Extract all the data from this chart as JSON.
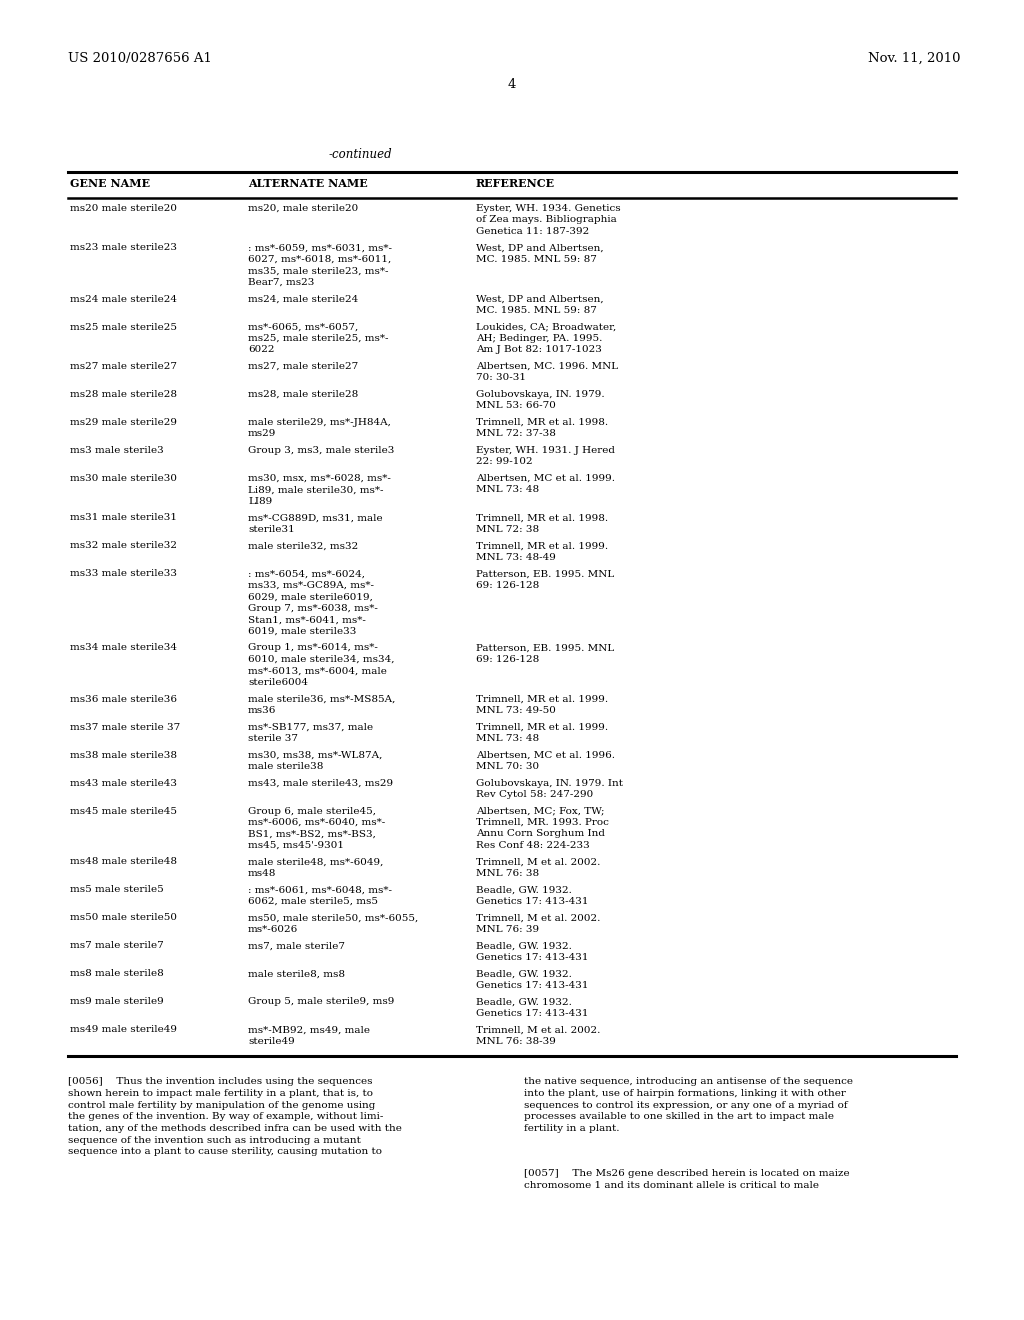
{
  "page_number": "4",
  "patent_number": "US 2010/0287656 A1",
  "date": "Nov. 11, 2010",
  "continued_label": "-continued",
  "table_headers": [
    "GENE NAME",
    "ALTERNATE NAME",
    "REFERENCE"
  ],
  "table_rows": [
    [
      "ms20 male sterile20",
      "ms20, male sterile20",
      "Eyster, WH. 1934. Genetics\nof Zea mays. Bibliographia\nGenetica 11: 187-392"
    ],
    [
      "ms23 male sterile23",
      ": ms*-6059, ms*-6031, ms*-\n6027, ms*-6018, ms*-6011,\nms35, male sterile23, ms*-\nBear7, ms23",
      "West, DP and Albertsen,\nMC. 1985. MNL 59: 87"
    ],
    [
      "ms24 male sterile24",
      "ms24, male sterile24",
      "West, DP and Albertsen,\nMC. 1985. MNL 59: 87"
    ],
    [
      "ms25 male sterile25",
      "ms*-6065, ms*-6057,\nms25, male sterile25, ms*-\n6022",
      "Loukides, CA; Broadwater,\nAH; Bedinger, PA. 1995.\nAm J Bot 82: 1017-1023"
    ],
    [
      "ms27 male sterile27",
      "ms27, male sterile27",
      "Albertsen, MC. 1996. MNL\n70: 30-31"
    ],
    [
      "ms28 male sterile28",
      "ms28, male sterile28",
      "Golubovskaya, IN. 1979.\nMNL 53: 66-70"
    ],
    [
      "ms29 male sterile29",
      "male sterile29, ms*-JH84A,\nms29",
      "Trimnell, MR et al. 1998.\nMNL 72: 37-38"
    ],
    [
      "ms3 male sterile3",
      "Group 3, ms3, male sterile3",
      "Eyster, WH. 1931. J Hered\n22: 99-102"
    ],
    [
      "ms30 male sterile30",
      "ms30, msx, ms*-6028, ms*-\nLi89, male sterile30, ms*-\nLI89",
      "Albertsen, MC et al. 1999.\nMNL 73: 48"
    ],
    [
      "ms31 male sterile31",
      "ms*-CG889D, ms31, male\nsterile31",
      "Trimnell, MR et al. 1998.\nMNL 72: 38"
    ],
    [
      "ms32 male sterile32",
      "male sterile32, ms32",
      "Trimnell, MR et al. 1999.\nMNL 73: 48-49"
    ],
    [
      "ms33 male sterile33",
      ": ms*-6054, ms*-6024,\nms33, ms*-GC89A, ms*-\n6029, male sterile6019,\nGroup 7, ms*-6038, ms*-\nStan1, ms*-6041, ms*-\n6019, male sterile33",
      "Patterson, EB. 1995. MNL\n69: 126-128"
    ],
    [
      "ms34 male sterile34",
      "Group 1, ms*-6014, ms*-\n6010, male sterile34, ms34,\nms*-6013, ms*-6004, male\nsterile6004",
      "Patterson, EB. 1995. MNL\n69: 126-128"
    ],
    [
      "ms36 male sterile36",
      "male sterile36, ms*-MS85A,\nms36",
      "Trimnell, MR et al. 1999.\nMNL 73: 49-50"
    ],
    [
      "ms37 male sterile 37",
      "ms*-SB177, ms37, male\nsterile 37",
      "Trimnell, MR et al. 1999.\nMNL 73: 48"
    ],
    [
      "ms38 male sterile38",
      "ms30, ms38, ms*-WL87A,\nmale sterile38",
      "Albertsen, MC et al. 1996.\nMNL 70: 30"
    ],
    [
      "ms43 male sterile43",
      "ms43, male sterile43, ms29",
      "Golubovskaya, IN. 1979. Int\nRev Cytol 58: 247-290"
    ],
    [
      "ms45 male sterile45",
      "Group 6, male sterile45,\nms*-6006, ms*-6040, ms*-\nBS1, ms*-BS2, ms*-BS3,\nms45, ms45'-9301",
      "Albertsen, MC; Fox, TW;\nTrimnell, MR. 1993. Proc\nAnnu Corn Sorghum Ind\nRes Conf 48: 224-233"
    ],
    [
      "ms48 male sterile48",
      "male sterile48, ms*-6049,\nms48",
      "Trimnell, M et al. 2002.\nMNL 76: 38"
    ],
    [
      "ms5 male sterile5",
      ": ms*-6061, ms*-6048, ms*-\n6062, male sterile5, ms5",
      "Beadle, GW. 1932.\nGenetics 17: 413-431"
    ],
    [
      "ms50 male sterile50",
      "ms50, male sterile50, ms*-6055,\nms*-6026",
      "Trimnell, M et al. 2002.\nMNL 76: 39"
    ],
    [
      "ms7 male sterile7",
      "ms7, male sterile7",
      "Beadle, GW. 1932.\nGenetics 17: 413-431"
    ],
    [
      "ms8 male sterile8",
      "male sterile8, ms8",
      "Beadle, GW. 1932.\nGenetics 17: 413-431"
    ],
    [
      "ms9 male sterile9",
      "Group 5, male sterile9, ms9",
      "Beadle, GW. 1932.\nGenetics 17: 413-431"
    ],
    [
      "ms49 male sterile49",
      "ms*-MB92, ms49, male\nsterile49",
      "Trimnell, M et al. 2002.\nMNL 76: 38-39"
    ]
  ],
  "para_left_0056": "[0056]  Thus the invention includes using the sequences\nshown herein to impact male fertility in a plant, that is, to\ncontrol male fertility by manipulation of the genome using\nthe genes of the invention. By way of example, without limi-\ntation, any of the methods described infra can be used with the\nsequence of the invention such as introducing a mutant\nsequence into a plant to cause sterility, causing mutation to",
  "para_right_0056": "the native sequence, introducing an antisense of the sequence\ninto the plant, use of hairpin formations, linking it with other\nsequences to control its expression, or any one of a myriad of\nprocesses available to one skilled in the art to impact male\nfertility in a plant.",
  "para_right_0057": "[0057]  The Ms26 gene described herein is located on maize\nchromosome 1 and its dominant allele is critical to male",
  "background_color": "#ffffff",
  "text_color": "#000000"
}
